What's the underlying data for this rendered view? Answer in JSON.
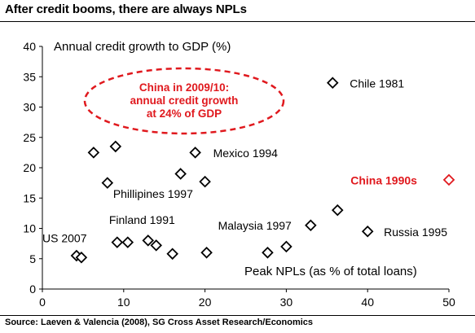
{
  "title": "After credit booms, there are always NPLs",
  "source": "Source: Laeven & Valencia (2008), SG Cross Asset Research/Economics",
  "colors": {
    "marker": "#000000",
    "highlight": "#e0191e",
    "ellipse": "#e0191e"
  },
  "chart_data": {
    "type": "scatter",
    "title": "After credit booms, there are always NPLs",
    "ylabel": "Annual credit growth to GDP (%)",
    "xlabel": "Peak NPLs (as % of total loans)",
    "xlim": [
      0,
      50
    ],
    "ylim": [
      0,
      40
    ],
    "x_ticks": [
      0,
      10,
      20,
      30,
      40,
      50
    ],
    "y_ticks": [
      0,
      5,
      10,
      15,
      20,
      25,
      30,
      35,
      40
    ],
    "grid": false,
    "marker": "diamond",
    "points": [
      {
        "x": 4.2,
        "y": 5.5,
        "label": ""
      },
      {
        "x": 4.8,
        "y": 5.2,
        "label": ""
      },
      {
        "x": 6.3,
        "y": 22.5,
        "label": ""
      },
      {
        "x": 8.0,
        "y": 17.5,
        "label": ""
      },
      {
        "x": 9.0,
        "y": 23.5,
        "label": ""
      },
      {
        "x": 9.2,
        "y": 7.7,
        "label": ""
      },
      {
        "x": 10.5,
        "y": 7.7,
        "label": ""
      },
      {
        "x": 13.0,
        "y": 8.0,
        "label": ""
      },
      {
        "x": 14.0,
        "y": 7.2,
        "label": ""
      },
      {
        "x": 16.0,
        "y": 5.8,
        "label": ""
      },
      {
        "x": 17.0,
        "y": 19.0,
        "label": ""
      },
      {
        "x": 18.8,
        "y": 22.5,
        "label": ""
      },
      {
        "x": 20.0,
        "y": 17.7,
        "label": ""
      },
      {
        "x": 20.2,
        "y": 6.0,
        "label": ""
      },
      {
        "x": 27.7,
        "y": 6.0,
        "label": ""
      },
      {
        "x": 30.0,
        "y": 7.0,
        "label": ""
      },
      {
        "x": 33.0,
        "y": 10.5,
        "label": ""
      },
      {
        "x": 35.7,
        "y": 34.0,
        "label": ""
      },
      {
        "x": 36.3,
        "y": 13.0,
        "label": ""
      },
      {
        "x": 40.0,
        "y": 9.5,
        "label": ""
      },
      {
        "x": 50.0,
        "y": 18.0,
        "label": "",
        "highlight": true
      }
    ],
    "labels": [
      {
        "text": "Chile 1981",
        "x": 37.8,
        "y": 33.9,
        "color": "black",
        "bold": false
      },
      {
        "text": "Mexico 1994",
        "x": 21.0,
        "y": 22.4,
        "color": "black",
        "bold": false
      },
      {
        "text": "China 1990s",
        "x": 37.9,
        "y": 17.9,
        "color": "red",
        "bold": true
      },
      {
        "text": "Phillipines 1997",
        "x": 8.7,
        "y": 15.7,
        "color": "black",
        "bold": false
      },
      {
        "text": "Finland 1991",
        "x": 8.2,
        "y": 11.4,
        "color": "black",
        "bold": false
      },
      {
        "text": "US 2007",
        "x": 0.0,
        "y": 8.4,
        "color": "black",
        "bold": false
      },
      {
        "text": "Malaysia 1997",
        "x": 21.6,
        "y": 10.5,
        "color": "black",
        "bold": false
      },
      {
        "text": "Russia 1995",
        "x": 42.0,
        "y": 9.4,
        "color": "black",
        "bold": false
      }
    ],
    "annotation": {
      "lines": [
        "China in 2009/10:",
        "annual credit growth",
        "at 24% of GDP"
      ],
      "color": "red",
      "shape": "dashed ellipse"
    }
  }
}
